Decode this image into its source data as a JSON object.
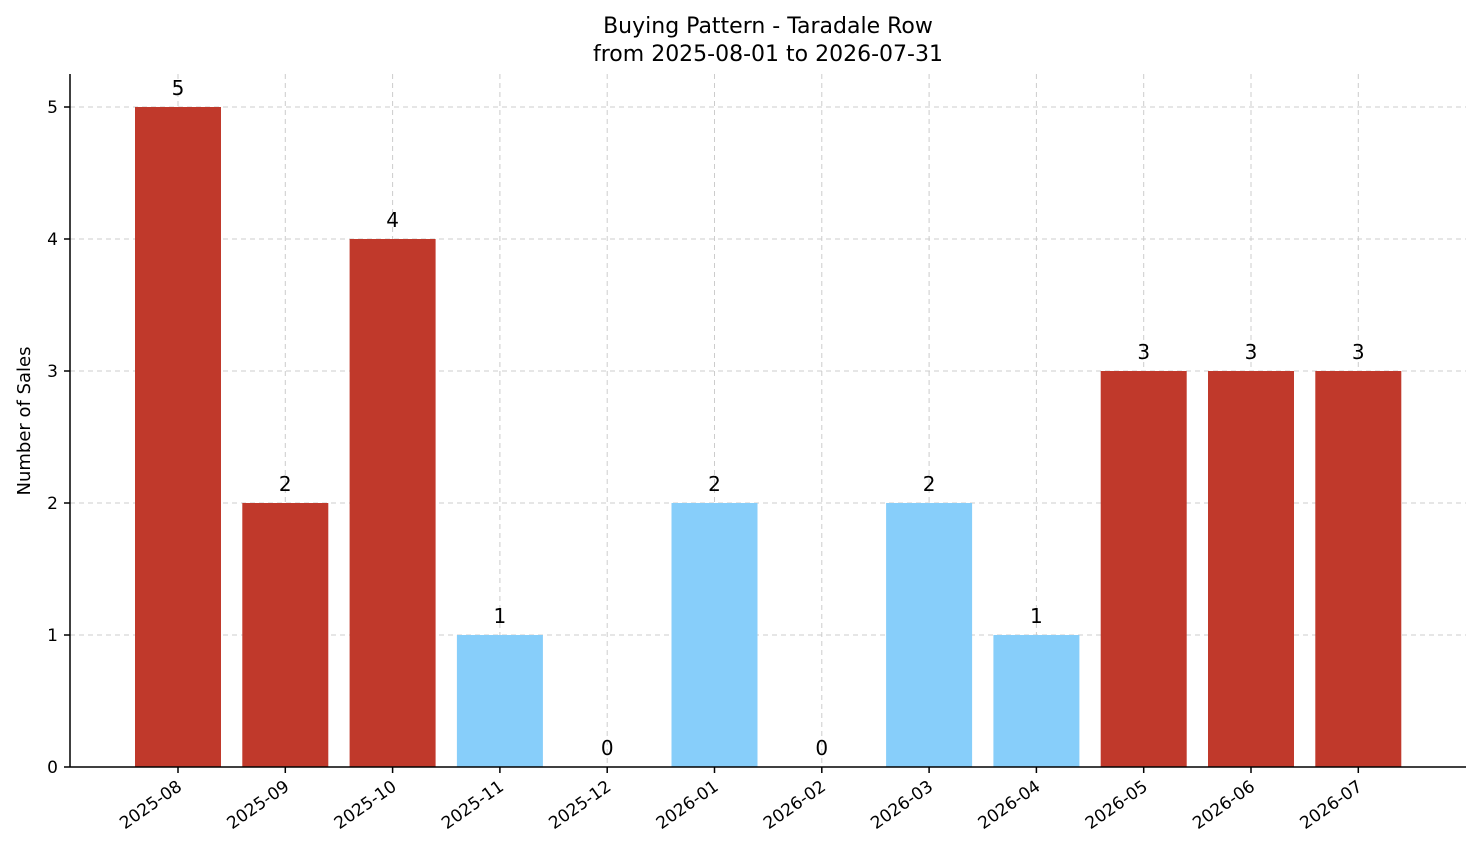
{
  "chart_data": {
    "type": "bar",
    "title": "Buying Pattern - Taradale Row",
    "subtitle": "from 2025-08-01 to 2026-07-31",
    "xlabel": "",
    "ylabel": "Number of Sales",
    "categories": [
      "2025-08",
      "2025-09",
      "2025-10",
      "2025-11",
      "2025-12",
      "2026-01",
      "2026-02",
      "2026-03",
      "2026-04",
      "2026-05",
      "2026-06",
      "2026-07"
    ],
    "values": [
      5,
      2,
      4,
      1,
      0,
      2,
      0,
      2,
      1,
      3,
      3,
      3
    ],
    "bar_colors": [
      "#c0392b",
      "#c0392b",
      "#c0392b",
      "#87cefa",
      "#87cefa",
      "#87cefa",
      "#87cefa",
      "#87cefa",
      "#87cefa",
      "#c0392b",
      "#c0392b",
      "#c0392b"
    ],
    "ylim": [
      0,
      5.25
    ],
    "yticks": [
      0,
      1,
      2,
      3,
      4,
      5
    ],
    "grid": true,
    "legend": "none"
  }
}
